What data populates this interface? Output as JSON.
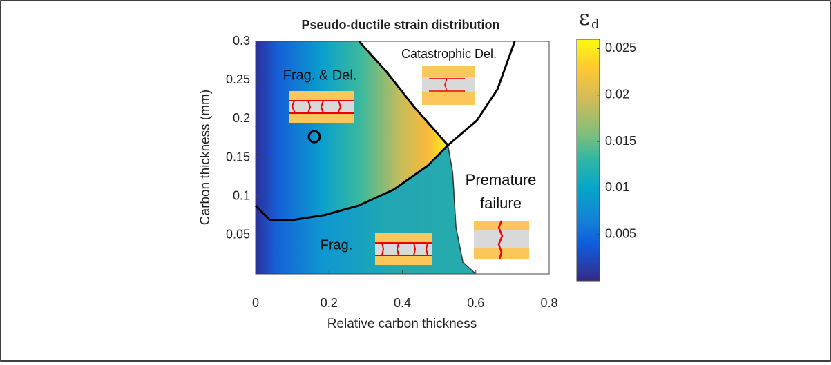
{
  "chart_data": {
    "type": "contour",
    "title": "Pseudo-ductile strain distribution",
    "x_label": "Relative carbon thickness",
    "y_label": "Carbon thickness (mm)",
    "xlim": [
      0,
      0.8
    ],
    "ylim": [
      0,
      0.3
    ],
    "xticks": [
      0,
      0.2,
      0.4,
      0.6,
      0.8
    ],
    "yticks": [
      0.05,
      0.1,
      0.15,
      0.2,
      0.25,
      0.3
    ],
    "colorbar": {
      "label": "ε",
      "label_subscript": "d",
      "lim": [
        0,
        0.026
      ],
      "ticks": [
        0.005,
        0.01,
        0.015,
        0.02,
        0.025
      ]
    },
    "boundaries": [
      {
        "x": [
          0,
          0.038,
          0.094,
          0.188,
          0.28,
          0.377,
          0.47,
          0.524
        ],
        "y": [
          0.088,
          0.07,
          0.069,
          0.076,
          0.088,
          0.109,
          0.14,
          0.166
        ]
      },
      {
        "x": [
          0.282,
          0.358,
          0.433,
          0.524
        ],
        "y": [
          0.3,
          0.26,
          0.215,
          0.166
        ]
      },
      {
        "x": [
          0.524,
          0.603,
          0.659,
          0.706
        ],
        "y": [
          0.166,
          0.198,
          0.238,
          0.3
        ]
      },
      {
        "x": [
          0.524,
          0.537,
          0.546,
          0.565,
          0.6
        ],
        "y": [
          0.166,
          0.131,
          0.06,
          0.015,
          0
        ]
      }
    ],
    "marker": {
      "x": 0.16,
      "y": 0.177
    },
    "annotations": [
      "Frag. & Del.",
      "Catastrophic Del.",
      "Frag.",
      "Premature",
      "failure"
    ]
  }
}
